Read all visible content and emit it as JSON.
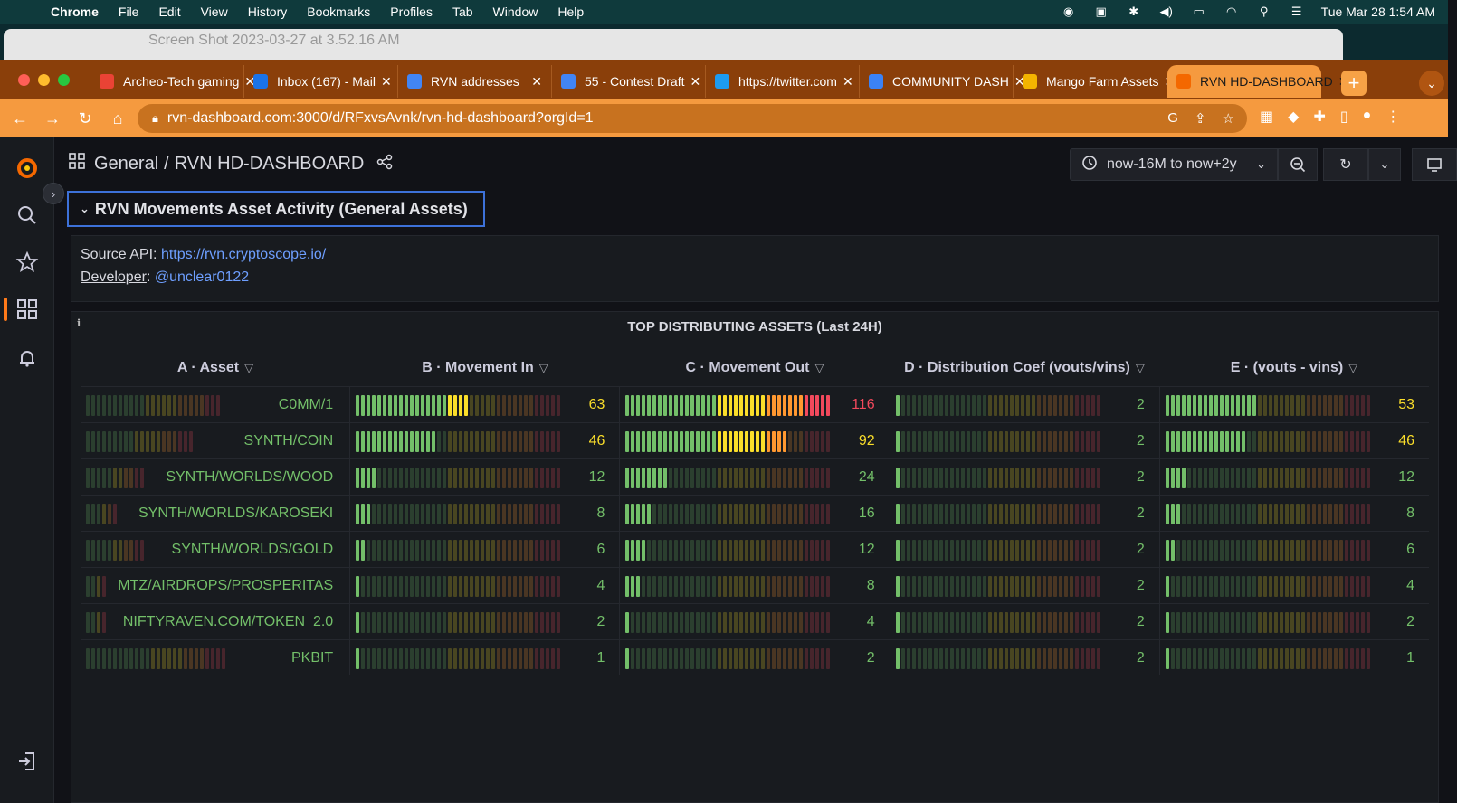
{
  "menubar": {
    "app": "Chrome",
    "items": [
      "File",
      "Edit",
      "View",
      "History",
      "Bookmarks",
      "Profiles",
      "Tab",
      "Window",
      "Help"
    ],
    "datetime": "Tue Mar 28  1:54 AM"
  },
  "background_window": {
    "title": "Screen Shot 2023-03-27 at 3.52.16 AM"
  },
  "tabs": [
    {
      "title": "Archeo-Tech gaming",
      "favicon": "gmail-icon",
      "color": "#ea4335"
    },
    {
      "title": "Inbox (167) - Mail",
      "favicon": "mail-icon",
      "color": "#1a73e8"
    },
    {
      "title": "RVN addresses",
      "favicon": "docs-icon",
      "color": "#4285f4"
    },
    {
      "title": "55 - Contest Draft",
      "favicon": "docs-icon",
      "color": "#4285f4"
    },
    {
      "title": "https://twitter.com",
      "favicon": "twitter-icon",
      "color": "#1d9bf0"
    },
    {
      "title": "COMMUNITY DASH",
      "favicon": "community-icon",
      "color": "#3b82f6"
    },
    {
      "title": "Mango Farm Assets",
      "favicon": "mango-icon",
      "color": "#f4b400"
    },
    {
      "title": "RVN HD-DASHBOARD",
      "favicon": "grafana-icon",
      "color": "#f46800",
      "active": true
    }
  ],
  "address_bar": {
    "url": "rvn-dashboard.com:3000/d/RFxvsAvnk/rvn-hd-dashboard?orgId=1"
  },
  "dashboard": {
    "folder": "General",
    "title": "RVN HD-DASHBOARD",
    "time_range": "now-16M to now+2y"
  },
  "row": {
    "title": "RVN Movements Asset Activity (General Assets)"
  },
  "text_panel": {
    "source_label": "Source API",
    "source_link": "https://rvn.cryptoscope.io/",
    "developer_label": "Developer",
    "developer_link": "@unclear0122"
  },
  "table": {
    "title": "TOP DISTRIBUTING ASSETS (Last 24H)",
    "columns": [
      "A · Asset",
      "B · Movement In",
      "C · Movement Out",
      "D · Distribution Coef (vouts/vins)",
      "E · (vouts - vins)"
    ],
    "rows": [
      {
        "asset": "C0MM/1",
        "movement_in": 63,
        "movement_out": 116,
        "coef": 2,
        "diff": 53
      },
      {
        "asset": "SYNTH/COIN",
        "movement_in": 46,
        "movement_out": 92,
        "coef": 2,
        "diff": 46
      },
      {
        "asset": "SYNTH/WORLDS/WOOD",
        "movement_in": 12,
        "movement_out": 24,
        "coef": 2,
        "diff": 12
      },
      {
        "asset": "SYNTH/WORLDS/KAROSEKI",
        "movement_in": 8,
        "movement_out": 16,
        "coef": 2,
        "diff": 8
      },
      {
        "asset": "SYNTH/WORLDS/GOLD",
        "movement_in": 6,
        "movement_out": 12,
        "coef": 2,
        "diff": 6
      },
      {
        "asset": "MTZ/AIRDROPS/PROSPERITAS",
        "movement_in": 4,
        "movement_out": 8,
        "coef": 2,
        "diff": 4
      },
      {
        "asset": "NIFTYRAVEN.COM/TOKEN_2.0",
        "movement_in": 2,
        "movement_out": 4,
        "coef": 2,
        "diff": 2
      },
      {
        "asset": "PKBIT",
        "movement_in": 1,
        "movement_out": 2,
        "coef": 2,
        "diff": 1
      }
    ],
    "gauge_max": {
      "movement_in": 116,
      "movement_out": 116,
      "coef": 116,
      "diff": 116
    }
  },
  "colors": {
    "accent": "#f46800",
    "link": "#6e9fff",
    "row_border": "#3d71d9",
    "green": "#73bf69",
    "yellow": "#fade2a",
    "orange": "#ff9830",
    "red": "#f2495c"
  }
}
